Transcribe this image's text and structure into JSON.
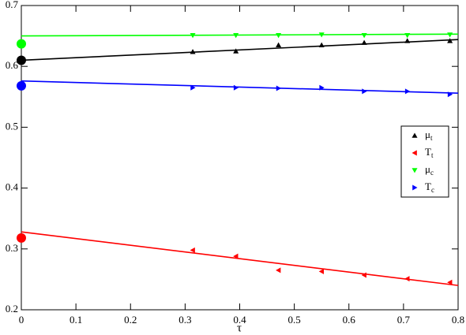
{
  "chart_data": {
    "type": "scatter",
    "x_label": "τ",
    "xlim": [
      0,
      0.8
    ],
    "xticks": [
      0,
      0.1,
      0.2,
      0.3,
      0.4,
      0.5,
      0.6,
      0.7,
      0.8
    ],
    "ylim": [
      0.2,
      0.7
    ],
    "yticks": [
      0.2,
      0.3,
      0.4,
      0.5,
      0.6,
      0.7
    ],
    "grid": false,
    "legend": "right",
    "series": [
      {
        "name": "μt",
        "color": "#000000",
        "marker": "up",
        "x": [
          0.314,
          0.393,
          0.471,
          0.55,
          0.628,
          0.707,
          0.785
        ],
        "values": [
          0.624,
          0.625,
          0.635,
          0.635,
          0.639,
          0.642,
          0.642
        ],
        "fit_x": [
          0,
          0.8
        ],
        "fit_values": [
          0.61,
          0.644
        ],
        "circle": {
          "x": 0,
          "value": 0.61
        }
      },
      {
        "name": "Tt",
        "color": "#ff0000",
        "marker": "left",
        "x": [
          0.314,
          0.393,
          0.471,
          0.55,
          0.628,
          0.707,
          0.785
        ],
        "values": [
          0.298,
          0.288,
          0.265,
          0.263,
          0.257,
          0.251,
          0.245
        ],
        "fit_x": [
          0,
          0.8
        ],
        "fit_values": [
          0.328,
          0.24
        ],
        "circle": {
          "x": 0,
          "value": 0.318
        }
      },
      {
        "name": "μc",
        "color": "#00ff00",
        "marker": "down",
        "x": [
          0.314,
          0.393,
          0.471,
          0.55,
          0.628,
          0.707,
          0.785
        ],
        "values": [
          0.651,
          0.651,
          0.651,
          0.652,
          0.651,
          0.651,
          0.652
        ],
        "fit_x": [
          0,
          0.8
        ],
        "fit_values": [
          0.65,
          0.653
        ],
        "circle": {
          "x": 0,
          "value": 0.637
        }
      },
      {
        "name": "Tc",
        "color": "#0000ff",
        "marker": "right",
        "x": [
          0.314,
          0.393,
          0.471,
          0.55,
          0.628,
          0.707,
          0.785
        ],
        "values": [
          0.565,
          0.565,
          0.564,
          0.565,
          0.559,
          0.559,
          0.554
        ],
        "fit_x": [
          0,
          0.8
        ],
        "fit_values": [
          0.576,
          0.556
        ],
        "circle": {
          "x": 0,
          "value": 0.568
        }
      }
    ]
  }
}
